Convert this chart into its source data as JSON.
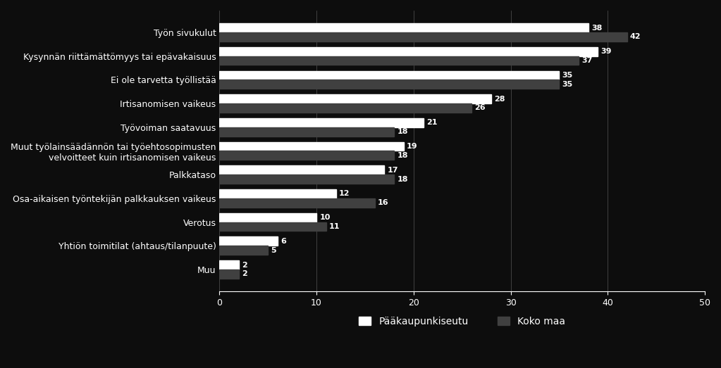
{
  "categories": [
    "Työn sivukulut",
    "Kysynnän riittämättömyys tai epävakaisuus",
    "Ei ole tarvetta työllistää",
    "Irtisanomisen vaikeus",
    "Työvoiman saatavuus",
    "Muut työlainsäädännön tai työehtosopimusten\nvelvoitteet kuin irtisanomisen vaikeus",
    "Palkkataso",
    "Osa-aikaisen työntekijän palkkauksen vaikeus",
    "Verotus",
    "Yhtiön toimitilat (ahtaus/tilanpuute)",
    "Muu"
  ],
  "paakaupunkiseutu": [
    38,
    39,
    35,
    28,
    21,
    19,
    17,
    12,
    10,
    6,
    2
  ],
  "koko_maa": [
    42,
    37,
    35,
    26,
    18,
    18,
    18,
    16,
    11,
    5,
    2
  ],
  "bar_color_paak": "#ffffff",
  "bar_color_koko": "#404040",
  "background_color": "#0d0d0d",
  "text_color": "#ffffff",
  "xlim": [
    0,
    50
  ],
  "xticks": [
    0,
    10,
    20,
    30,
    40,
    50
  ],
  "legend_paak": "Pääkaupunkiseutu",
  "legend_koko": "Koko maa",
  "bar_height": 0.38,
  "fontsize_labels": 9,
  "fontsize_ticks": 9,
  "fontsize_values": 8,
  "fontsize_legend": 10
}
